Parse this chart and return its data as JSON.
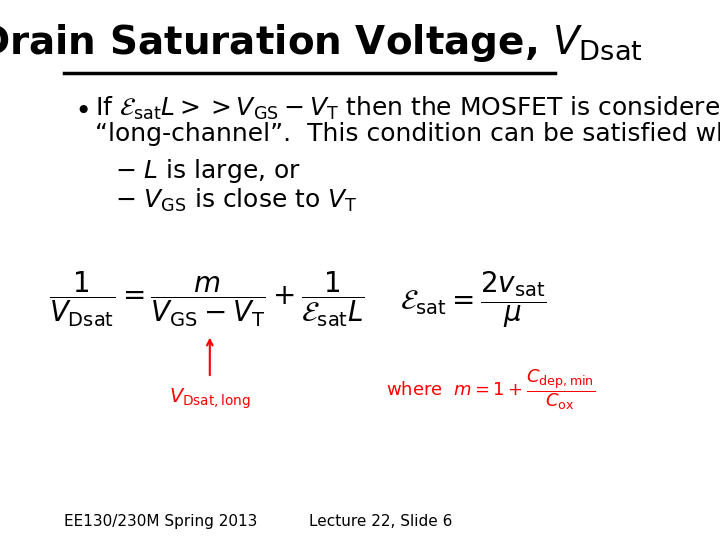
{
  "title": "Drain Saturation Voltage, $V_{\\mathrm{Dsat}}$",
  "title_fontsize": 28,
  "bg_color": "#ffffff",
  "text_color": "#000000",
  "footer_left": "EE130/230M Spring 2013",
  "footer_right": "Lecture 22, Slide 6",
  "footer_fontsize": 11,
  "bullet_line1a": "If $\\mathcal{E}_{\\mathrm{sat}}L >> V_{\\mathrm{GS}}-V_{\\mathrm{T}}$ then the MOSFET is considered",
  "bullet_line1b": "“long-channel”.  This condition can be satisfied when",
  "dash1": "$-$ $L$ is large, or",
  "dash2": "$-$ $V_{\\mathrm{GS}}$ is close to $V_{\\mathrm{T}}$",
  "eq_main": "$\\dfrac{1}{V_{\\mathrm{Dsat}}} = \\dfrac{m}{V_{\\mathrm{GS}}-V_{\\mathrm{T}}} + \\dfrac{1}{\\mathcal{E}_{\\mathrm{sat}}L}$",
  "eq_esat": "$\\mathcal{E}_{\\mathrm{sat}} = \\dfrac{2v_{\\mathrm{sat}}}{\\mu}$",
  "eq_vdsat_long": "$V_{\\mathrm{Dsat,long}}$",
  "eq_m": "where  $m = 1 + \\dfrac{C_{\\mathrm{dep,min}}}{C_{\\mathrm{ox}}}$",
  "arrow_annotation": "↑",
  "main_fontsize": 18,
  "eq_fontsize": 17,
  "eq_red_fontsize": 13
}
